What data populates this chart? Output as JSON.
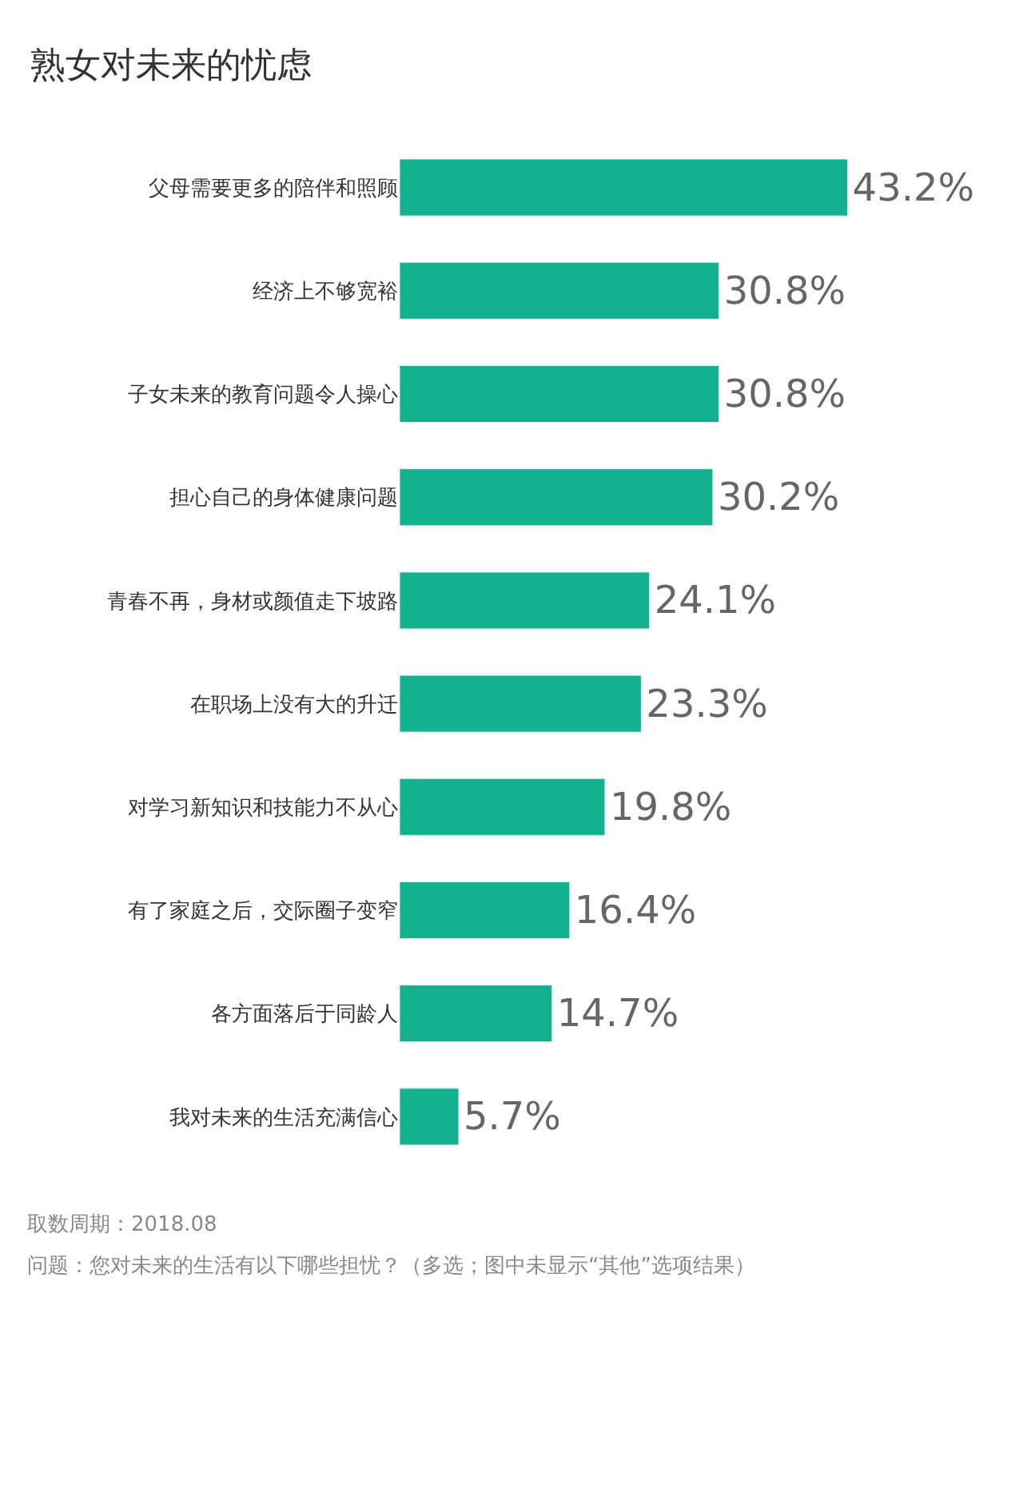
{
  "chart_data": {
    "type": "bar",
    "orientation": "horizontal",
    "title": "熟女对未来的忧虑",
    "categories": [
      "父母需要更多的陪伴和照顾",
      "经济上不够宽裕",
      "子女未来的教育问题令人操心",
      "担心自己的身体健康问题",
      "青春不再，身材或颜值走下坡路",
      "在职场上没有大的升迁",
      "对学习新知识和技能力不从心",
      "有了家庭之后，交际圈子变窄",
      "各方面落后于同龄人",
      "我对未来的生活充满信心"
    ],
    "values": [
      43.2,
      30.8,
      30.8,
      30.2,
      24.1,
      23.3,
      19.8,
      16.4,
      14.7,
      5.7
    ],
    "value_labels": [
      "43.2%",
      "30.8%",
      "30.8%",
      "30.2%",
      "24.1%",
      "23.3%",
      "19.8%",
      "16.4%",
      "14.7%",
      "5.7%"
    ],
    "color": "#13b18f",
    "legend": false,
    "annotations": [
      "取数周期：2018.08",
      "问题：您对未来的生活有以下哪些担忧？（多选；图中未显示“其他”选项结果）"
    ]
  }
}
